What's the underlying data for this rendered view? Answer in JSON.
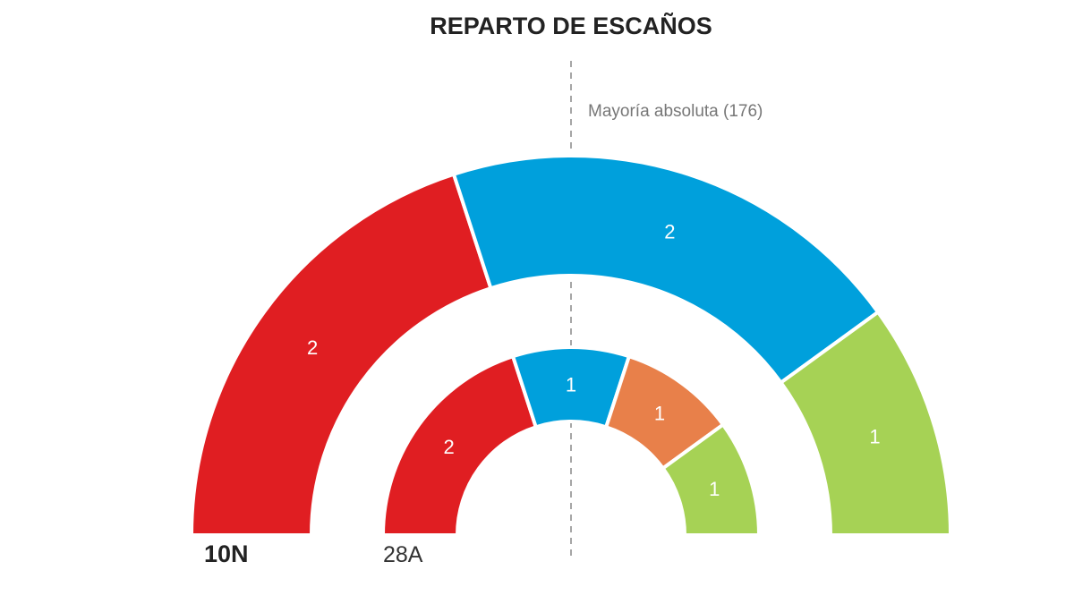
{
  "chart_data": {
    "type": "parliament",
    "title": "REPARTO DE ESCAÑOS",
    "majority_label": "Mayoría absoluta (176)",
    "rings": [
      {
        "label": "10N",
        "segments": [
          {
            "seats": 2,
            "color": "#e01e22"
          },
          {
            "seats": 2,
            "color": "#00a0dc"
          },
          {
            "seats": 1,
            "color": "#a6d255"
          }
        ]
      },
      {
        "label": "28A",
        "segments": [
          {
            "seats": 2,
            "color": "#e01e22"
          },
          {
            "seats": 1,
            "color": "#00a0dc"
          },
          {
            "seats": 1,
            "color": "#e8804a"
          },
          {
            "seats": 1,
            "color": "#a6d255"
          }
        ]
      }
    ]
  }
}
